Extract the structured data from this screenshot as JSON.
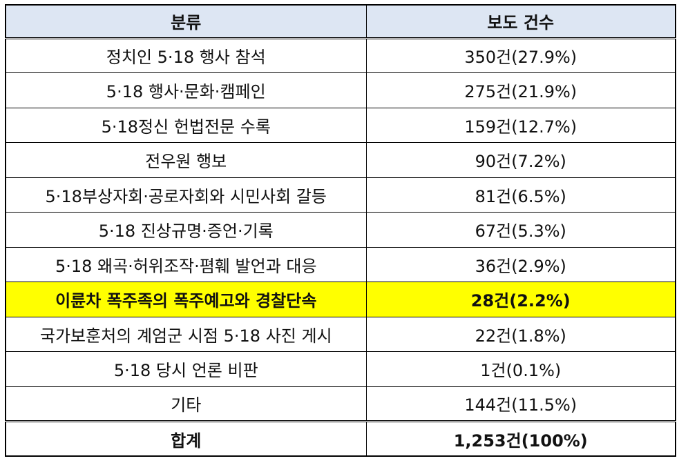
{
  "table": {
    "headers": [
      "분류",
      "보도 건수"
    ],
    "rows": [
      {
        "category": "정치인 5·18 행사 참석",
        "count": "350건(27.9%)"
      },
      {
        "category": "5·18 행사·문화·캠페인",
        "count": "275건(21.9%)"
      },
      {
        "category": "5·18정신 헌법전문 수록",
        "count": "159건(12.7%)"
      },
      {
        "category": "전우원 행보",
        "count": "90건(7.2%)"
      },
      {
        "category": "5·18부상자회·공로자회와 시민사회 갈등",
        "count": "81건(6.5%)"
      },
      {
        "category": "5·18 진상규명·증언·기록",
        "count": "67건(5.3%)"
      },
      {
        "category": "5·18 왜곡·허위조작·폄훼 발언과 대응",
        "count": "36건(2.9%)"
      },
      {
        "category": "이륜차 폭주족의 폭주예고와 경찰단속",
        "count": "28건(2.2%)"
      },
      {
        "category": "국가보훈처의 계엄군 시점 5·18 사진 게시",
        "count": "22건(1.8%)"
      },
      {
        "category": "5·18 당시 언론 비판",
        "count": "1건(0.1%)"
      },
      {
        "category": "기타",
        "count": "144건(11.5%)"
      }
    ],
    "total": {
      "category": "합계",
      "count": "1,253건(100%)"
    }
  },
  "colors": {
    "header_bg": "#dde6f3",
    "highlight_bg": "#ffff00",
    "border": "#000000"
  }
}
